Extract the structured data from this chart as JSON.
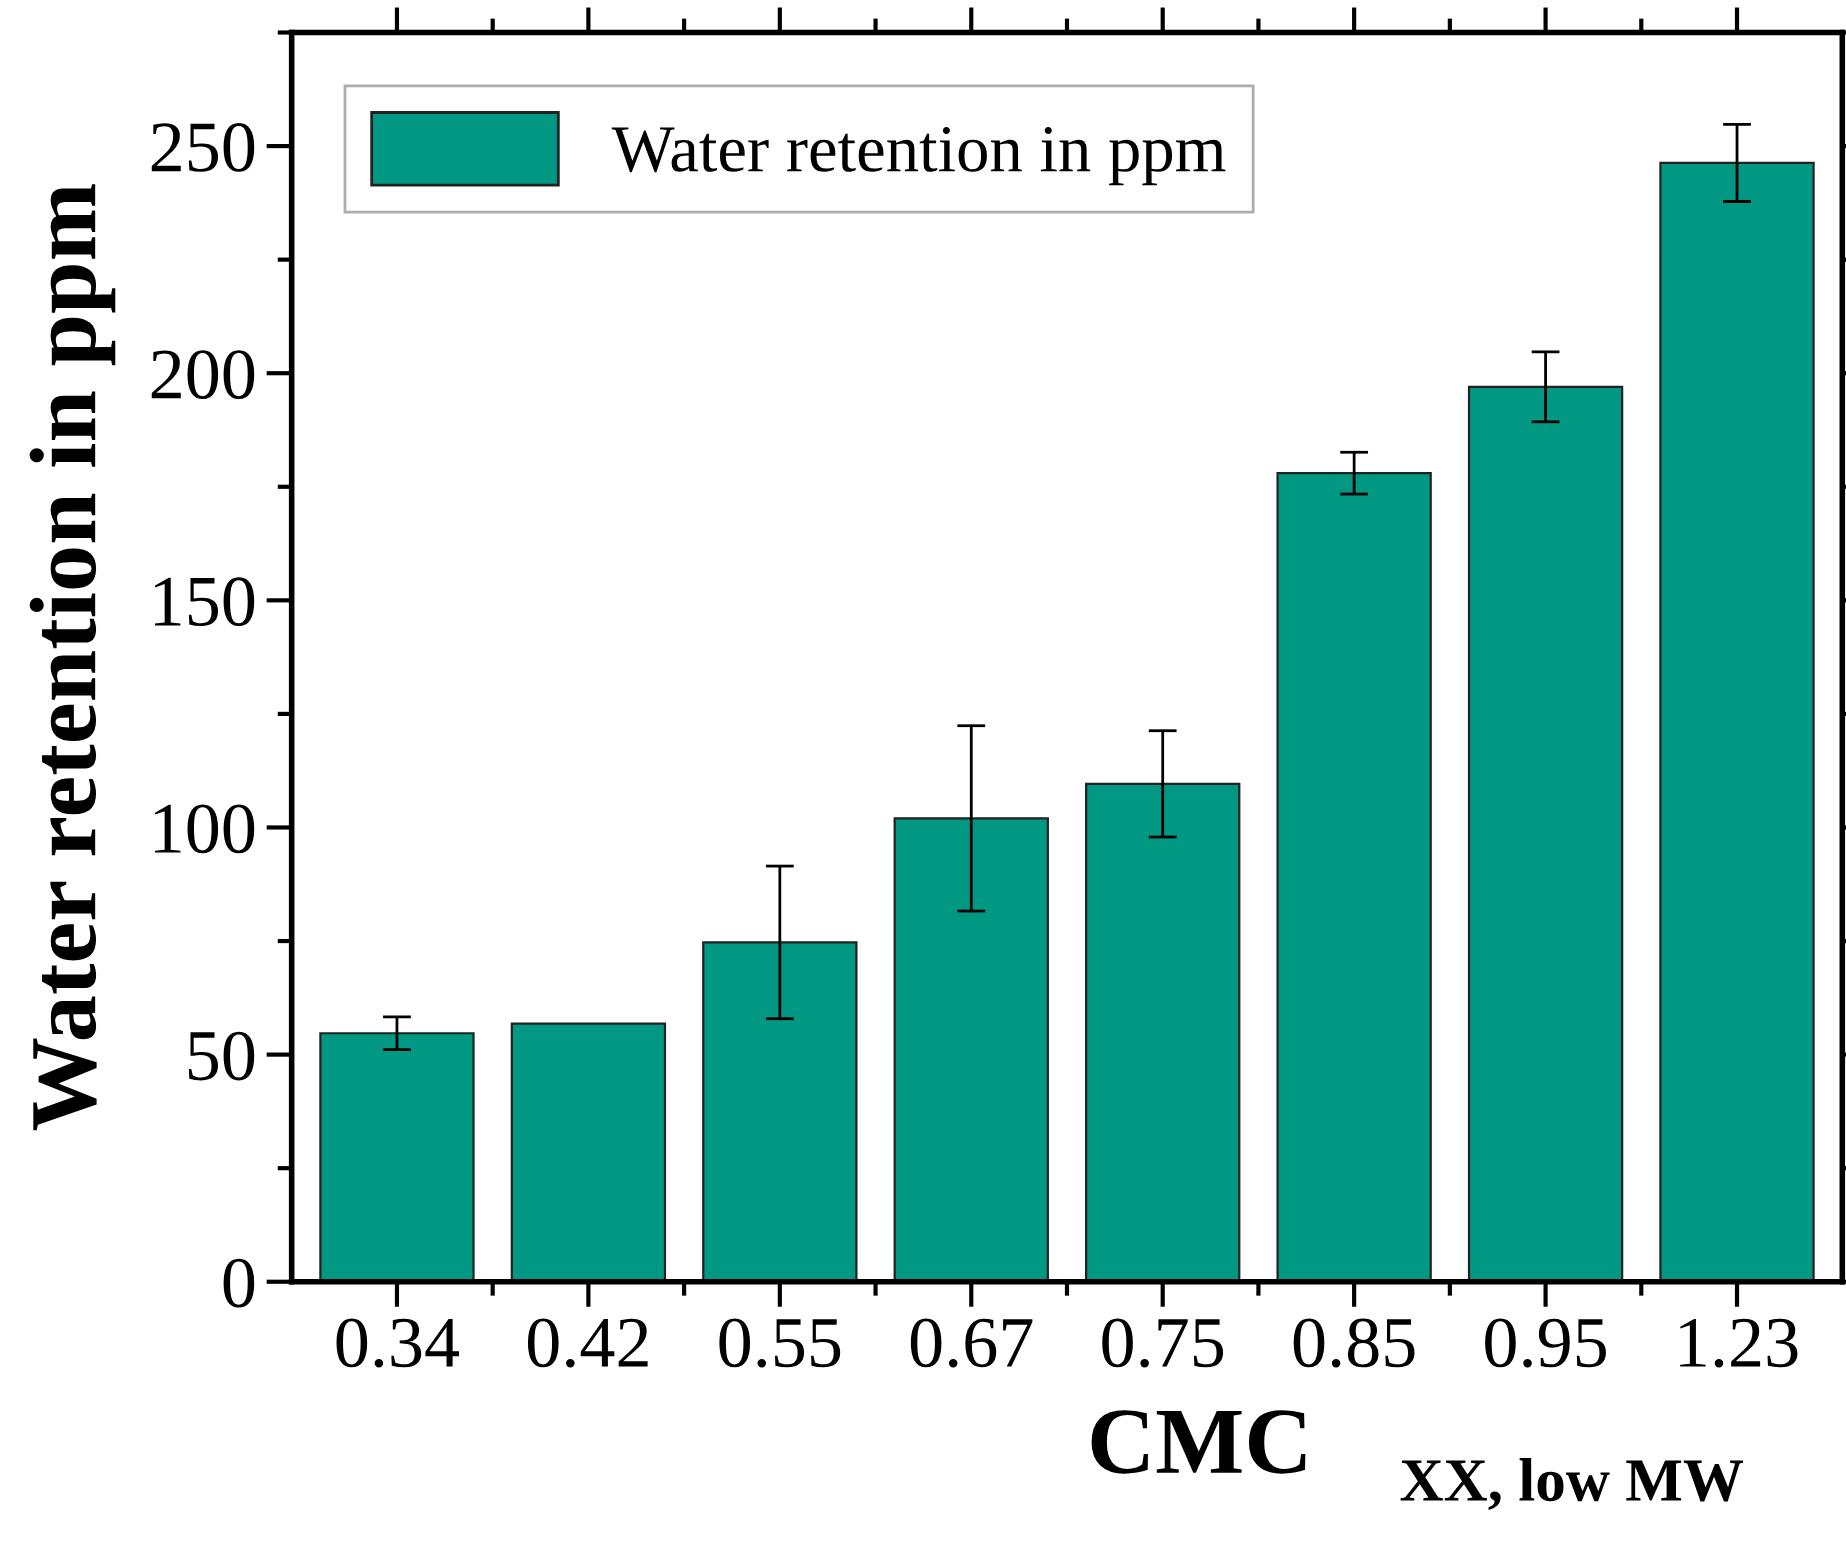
{
  "chart_data": {
    "type": "bar",
    "xlabel": "CMC$_{XX, low MW}$",
    "ylabel": "Water retention in ppm",
    "categories": [
      "0.34",
      "0.42",
      "0.55",
      "0.67",
      "0.75",
      "0.85",
      "0.95",
      "1.23"
    ],
    "series": [
      {
        "name": "Water retention in ppm",
        "color": "#009882",
        "values": [
          54.7,
          56.8,
          74.7,
          102,
          109.6,
          178,
          197,
          246.3
        ],
        "errors": [
          3.6,
          null,
          16.8,
          20.4,
          11.7,
          4.6,
          7.7,
          8.5
        ]
      }
    ],
    "ylim": [
      0,
      275
    ],
    "yticks": [
      0,
      50,
      100,
      150,
      200,
      250
    ],
    "grid": false,
    "legend": "top left"
  }
}
